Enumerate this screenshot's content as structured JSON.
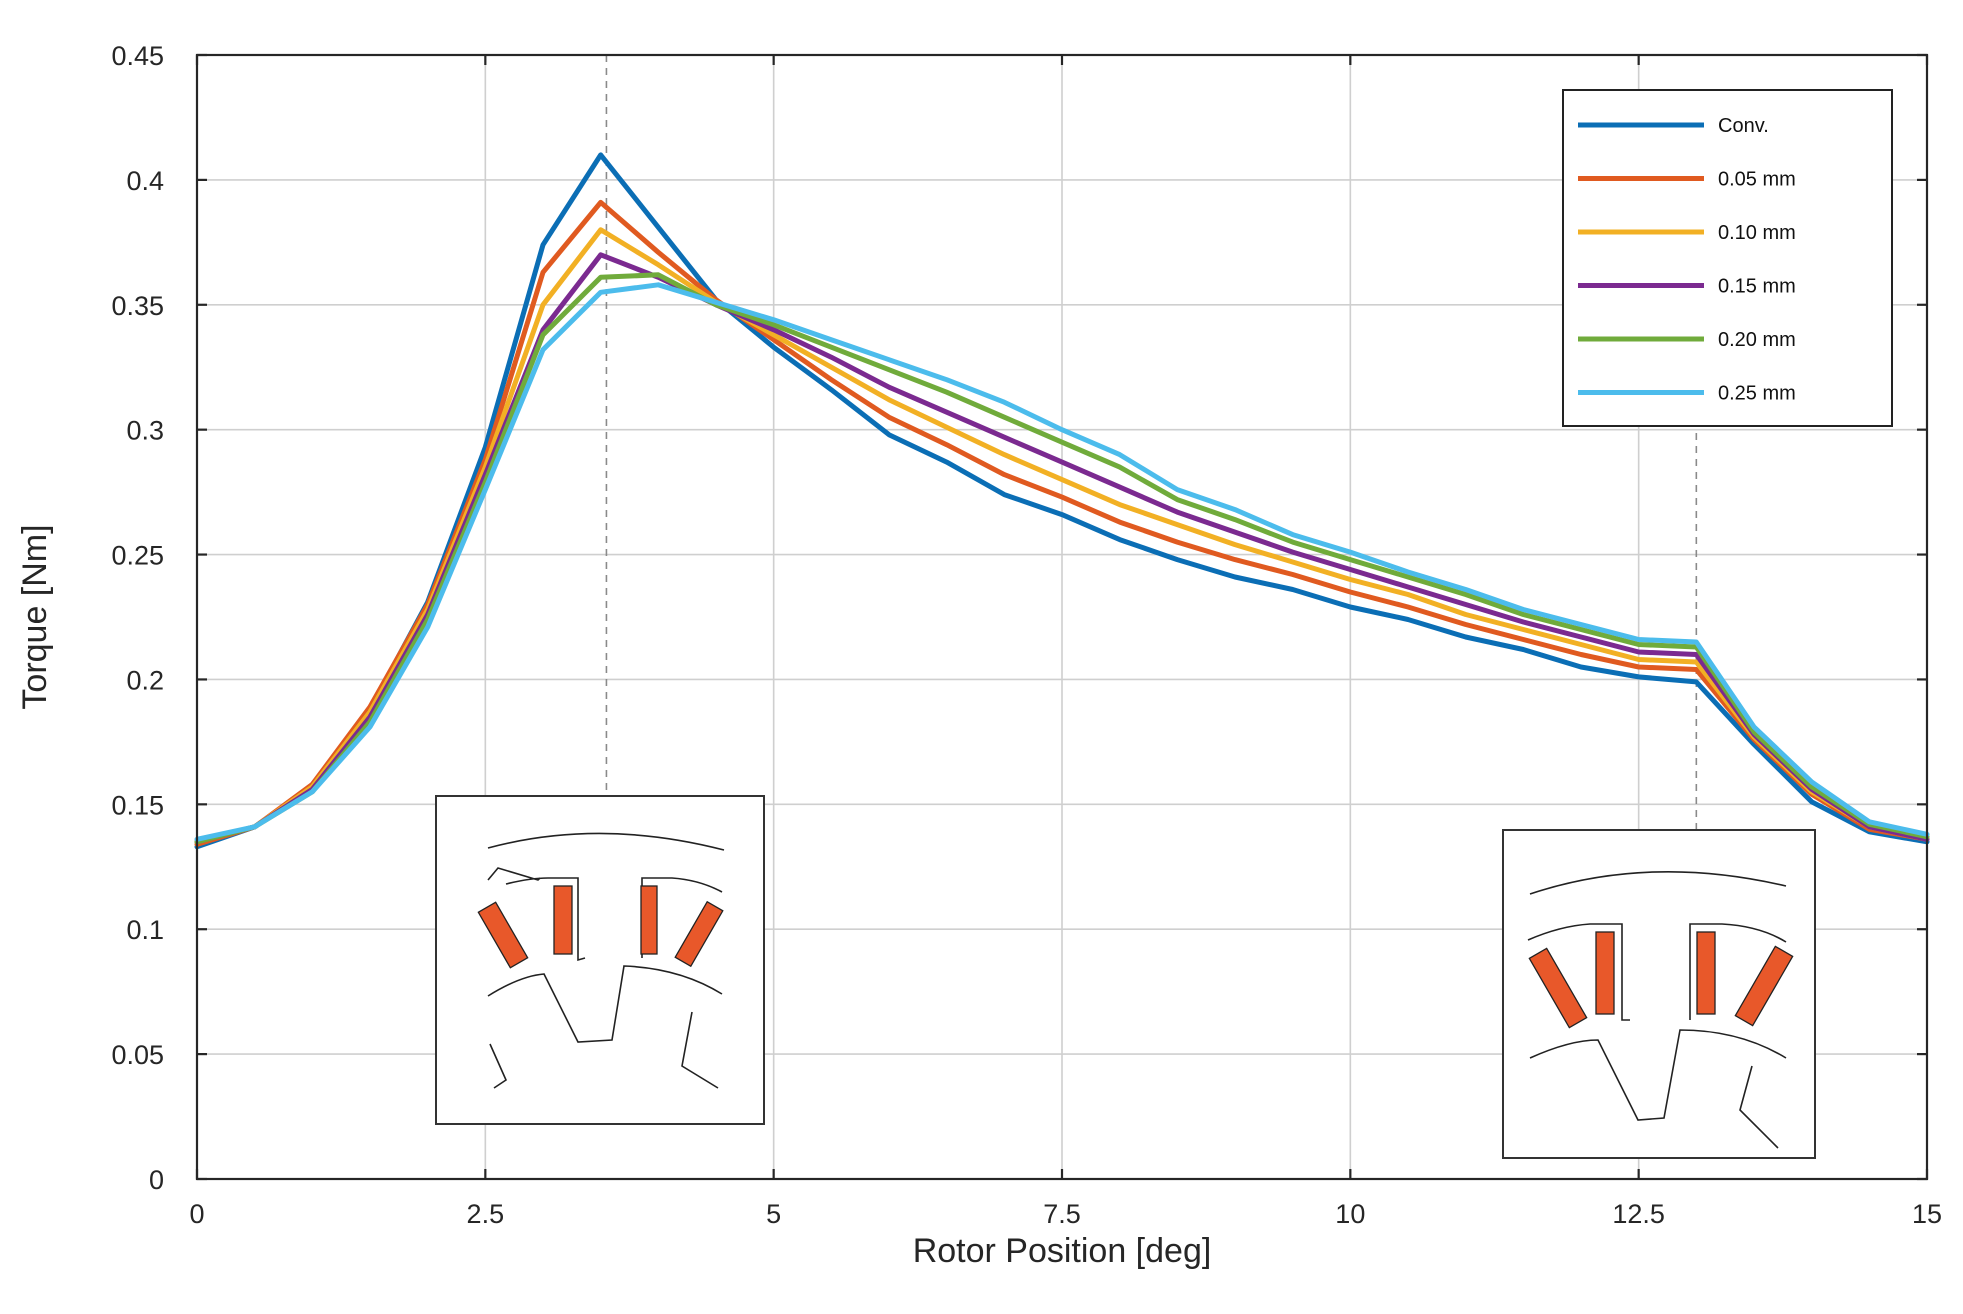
{
  "chart_data": {
    "type": "line",
    "title": "",
    "xlabel": "Rotor Position [deg]",
    "ylabel": "Torque [Nm]",
    "xlim": [
      0,
      15
    ],
    "ylim": [
      0,
      0.45
    ],
    "grid": true,
    "legend_position": "top-right",
    "x_ticks": [
      "0",
      "2.5",
      "5",
      "7.5",
      "10",
      "12.5",
      "15"
    ],
    "y_ticks": [
      "0",
      "0.05",
      "0.1",
      "0.15",
      "0.2",
      "0.25",
      "0.3",
      "0.35",
      "0.4",
      "0.45"
    ],
    "x_tick_values": [
      0,
      2.5,
      5,
      7.5,
      10,
      12.5,
      15
    ],
    "y_tick_values": [
      0,
      0.05,
      0.1,
      0.15,
      0.2,
      0.25,
      0.3,
      0.35,
      0.4,
      0.45
    ],
    "reference_lines_x": [
      3.55,
      13.0
    ],
    "x": [
      0,
      0.5,
      1,
      1.5,
      2,
      2.5,
      3,
      3.5,
      4,
      4.5,
      5,
      5.5,
      6,
      6.5,
      7,
      7.5,
      8,
      8.5,
      9,
      9.5,
      10,
      10.5,
      11,
      11.5,
      12,
      12.5,
      13,
      13.5,
      14,
      14.5,
      15
    ],
    "series": [
      {
        "name": "Conv.",
        "color": "#0b6eb5",
        "values": [
          0.133,
          0.141,
          0.157,
          0.188,
          0.231,
          0.293,
          0.374,
          0.41,
          0.381,
          0.352,
          0.333,
          0.316,
          0.298,
          0.287,
          0.274,
          0.266,
          0.256,
          0.248,
          0.241,
          0.236,
          0.229,
          0.224,
          0.217,
          0.212,
          0.205,
          0.201,
          0.199,
          0.174,
          0.151,
          0.139,
          0.135
        ]
      },
      {
        "name": "0.05 mm",
        "color": "#e05a20",
        "values": [
          0.134,
          0.141,
          0.158,
          0.189,
          0.23,
          0.288,
          0.363,
          0.391,
          0.371,
          0.352,
          0.336,
          0.32,
          0.305,
          0.294,
          0.282,
          0.273,
          0.263,
          0.255,
          0.248,
          0.242,
          0.235,
          0.229,
          0.222,
          0.216,
          0.21,
          0.205,
          0.204,
          0.176,
          0.154,
          0.14,
          0.136
        ]
      },
      {
        "name": "0.10 mm",
        "color": "#f2b024",
        "values": [
          0.135,
          0.141,
          0.157,
          0.187,
          0.228,
          0.285,
          0.35,
          0.38,
          0.366,
          0.351,
          0.338,
          0.325,
          0.312,
          0.301,
          0.29,
          0.28,
          0.27,
          0.262,
          0.254,
          0.247,
          0.24,
          0.234,
          0.226,
          0.22,
          0.214,
          0.208,
          0.207,
          0.177,
          0.155,
          0.141,
          0.136
        ]
      },
      {
        "name": "0.15 mm",
        "color": "#7b2a90",
        "values": [
          0.135,
          0.141,
          0.156,
          0.185,
          0.226,
          0.282,
          0.34,
          0.37,
          0.361,
          0.35,
          0.34,
          0.329,
          0.317,
          0.307,
          0.297,
          0.287,
          0.277,
          0.267,
          0.259,
          0.251,
          0.244,
          0.237,
          0.23,
          0.223,
          0.217,
          0.211,
          0.21,
          0.178,
          0.156,
          0.141,
          0.136
        ]
      },
      {
        "name": "0.20 mm",
        "color": "#70ab3b",
        "values": [
          0.135,
          0.141,
          0.155,
          0.183,
          0.224,
          0.279,
          0.338,
          0.361,
          0.362,
          0.35,
          0.342,
          0.333,
          0.324,
          0.315,
          0.305,
          0.295,
          0.285,
          0.272,
          0.264,
          0.255,
          0.248,
          0.241,
          0.234,
          0.226,
          0.22,
          0.214,
          0.213,
          0.179,
          0.157,
          0.142,
          0.137
        ]
      },
      {
        "name": "0.25 mm",
        "color": "#4cbcec",
        "values": [
          0.136,
          0.141,
          0.155,
          0.181,
          0.221,
          0.276,
          0.332,
          0.355,
          0.358,
          0.351,
          0.344,
          0.336,
          0.328,
          0.32,
          0.311,
          0.3,
          0.29,
          0.276,
          0.268,
          0.258,
          0.251,
          0.243,
          0.236,
          0.228,
          0.222,
          0.216,
          0.215,
          0.181,
          0.159,
          0.143,
          0.138
        ]
      }
    ]
  }
}
